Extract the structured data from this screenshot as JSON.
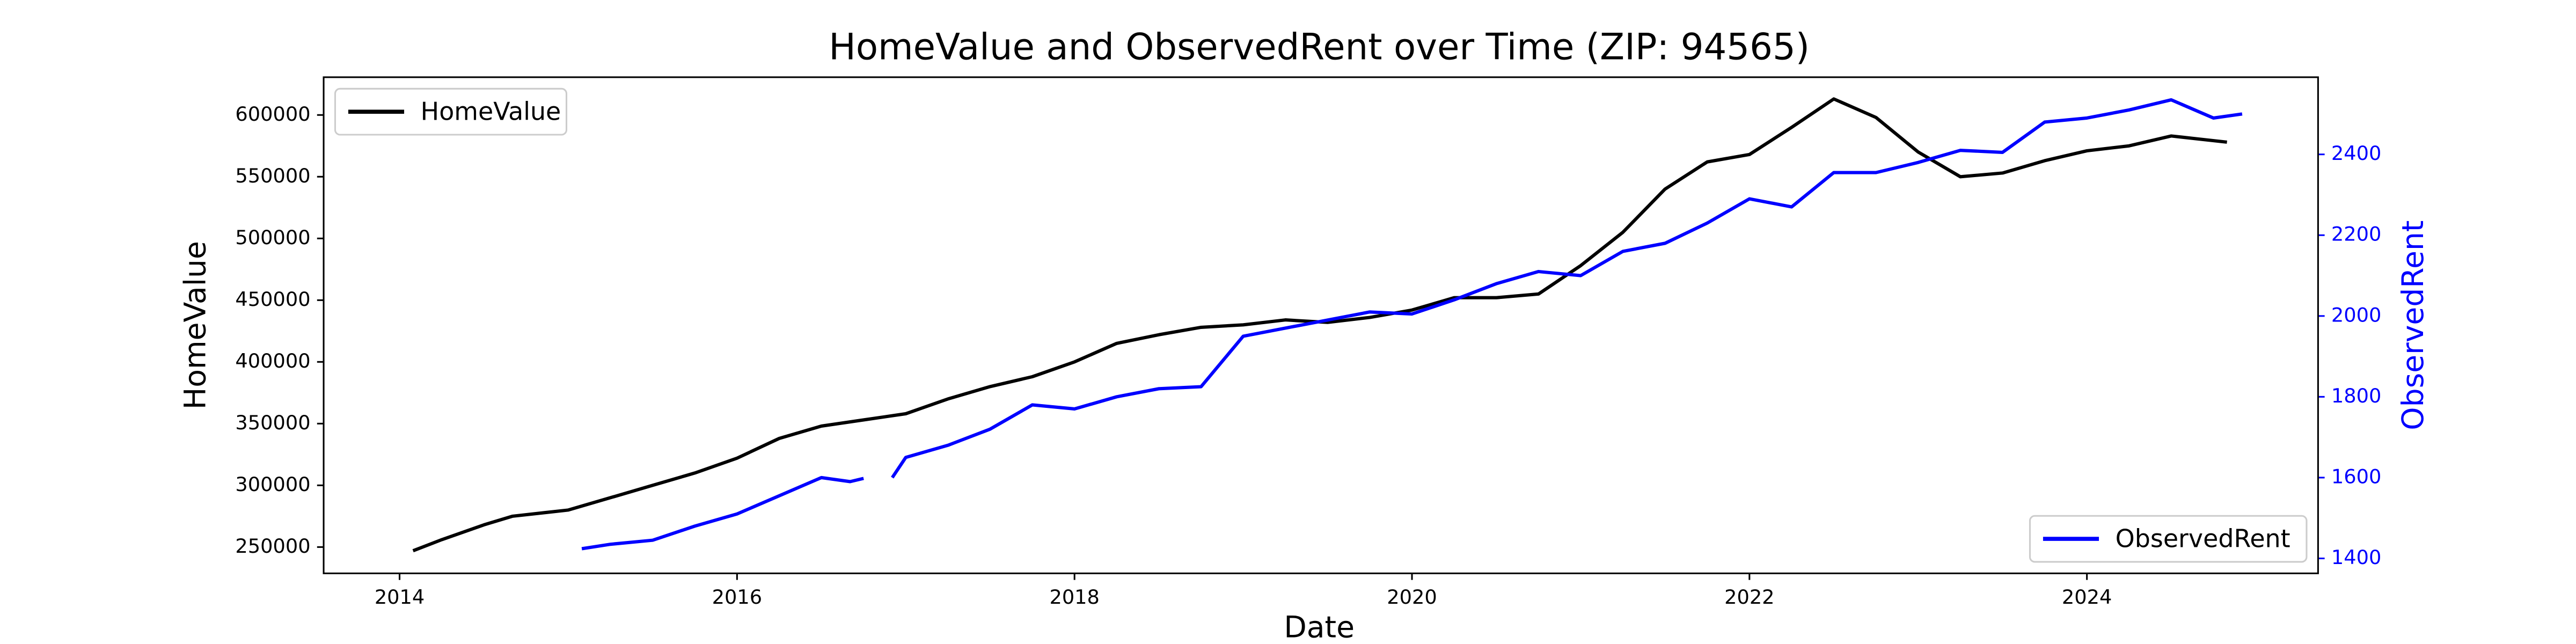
{
  "chart_data": {
    "type": "line",
    "title": "HomeValue and ObservedRent over Time (ZIP: 94565)",
    "x_label": "Date",
    "y_label": "HomeValue",
    "y2_label": "ObservedRent",
    "xlim": [
      2013.55,
      2025.37
    ],
    "xticks": [
      2014,
      2016,
      2018,
      2020,
      2022,
      2024
    ],
    "ylim": [
      228700,
      630600
    ],
    "yticks": [
      250000,
      300000,
      350000,
      400000,
      450000,
      500000,
      550000,
      600000
    ],
    "y2lim": [
      1363,
      2591
    ],
    "y2ticks": [
      1400,
      1600,
      1800,
      2000,
      2200,
      2400
    ],
    "y2_color": "#0000ff",
    "series": [
      {
        "name": "HomeValue",
        "color": "#000000",
        "legend": "upper left",
        "x": [
          2014.08,
          2014.25,
          2014.5,
          2014.67,
          2015.0,
          2015.25,
          2015.5,
          2015.75,
          2016.0,
          2016.25,
          2016.5,
          2016.75,
          2017.0,
          2017.25,
          2017.5,
          2017.75,
          2018.0,
          2018.25,
          2018.5,
          2018.75,
          2019.0,
          2019.25,
          2019.5,
          2019.75,
          2020.0,
          2020.25,
          2020.5,
          2020.75,
          2021.0,
          2021.25,
          2021.5,
          2021.75,
          2022.0,
          2022.25,
          2022.5,
          2022.75,
          2023.0,
          2023.25,
          2023.5,
          2023.75,
          2024.0,
          2024.25,
          2024.5,
          2024.83
        ],
        "values": [
          247000,
          256000,
          268000,
          275000,
          280000,
          290000,
          300000,
          310000,
          322000,
          338000,
          348000,
          353000,
          358000,
          370000,
          380000,
          388000,
          400000,
          415000,
          422000,
          428000,
          430000,
          434000,
          432000,
          436000,
          442000,
          452000,
          452000,
          455000,
          478000,
          505000,
          540000,
          562000,
          568000,
          590000,
          613000,
          598000,
          570000,
          550000,
          553000,
          563000,
          571000,
          575000,
          583000,
          578000
        ]
      },
      {
        "name": "ObservedRent",
        "color": "#0000ff",
        "axis": "y2",
        "legend": "lower right",
        "x": [
          2015.08,
          2015.25,
          2015.5,
          2015.75,
          2016.0,
          2016.25,
          2016.5,
          2016.67,
          2016.75,
          2016.83,
          2016.92,
          2017.0,
          2017.25,
          2017.5,
          2017.75,
          2018.0,
          2018.25,
          2018.5,
          2018.75,
          2019.0,
          2019.25,
          2019.5,
          2019.75,
          2020.0,
          2020.25,
          2020.5,
          2020.75,
          2021.0,
          2021.25,
          2021.5,
          2021.75,
          2022.0,
          2022.25,
          2022.5,
          2022.75,
          2023.0,
          2023.25,
          2023.5,
          2023.75,
          2024.0,
          2024.25,
          2024.5,
          2024.75,
          2024.92
        ],
        "values": [
          1424,
          1435,
          1445,
          1480,
          1510,
          1555,
          1600,
          1590,
          1598,
          null,
          1600,
          1650,
          1680,
          1720,
          1780,
          1770,
          1800,
          1820,
          1825,
          1950,
          1970,
          1990,
          2010,
          2005,
          2040,
          2080,
          2110,
          2100,
          2160,
          2180,
          2230,
          2290,
          2270,
          2355,
          2355,
          2380,
          2410,
          2405,
          2480,
          2490,
          2510,
          2535,
          2490,
          2500
        ]
      }
    ]
  }
}
